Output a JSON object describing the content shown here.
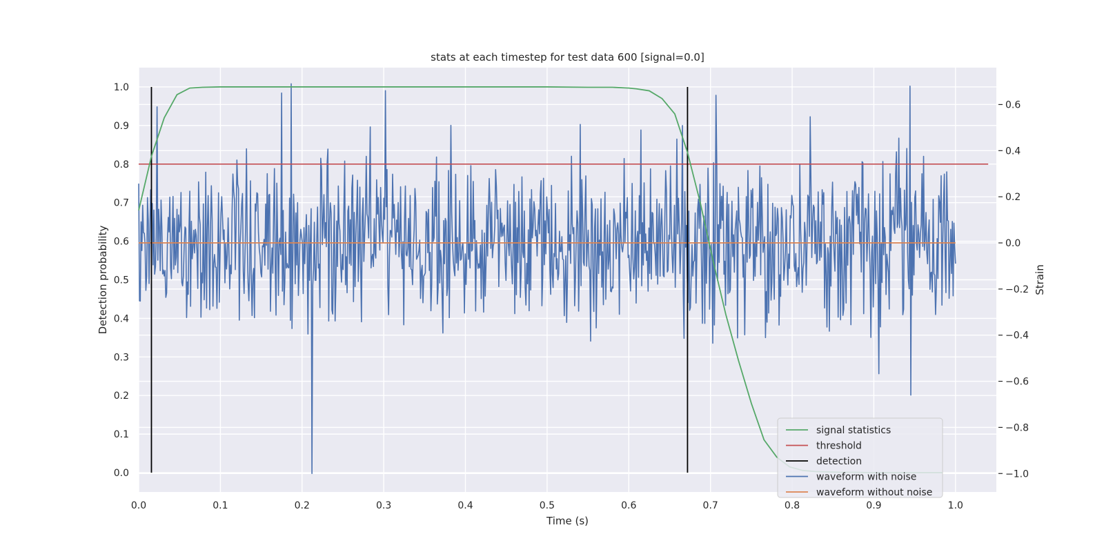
{
  "chart_data": {
    "type": "line",
    "title": "stats at each timestep for test data 600 [signal=0.0]",
    "xlabel": "Time (s)",
    "ylabel": "Detection probability",
    "y2label": "Strain",
    "xlim": [
      0.0,
      1.05
    ],
    "ylim": [
      -0.05,
      1.05
    ],
    "y2lim": [
      -1.08,
      0.76
    ],
    "grid": true,
    "background": "#eaeaf2",
    "x_ticks": [
      "0.0",
      "0.1",
      "0.2",
      "0.3",
      "0.4",
      "0.5",
      "0.6",
      "0.7",
      "0.8",
      "0.9",
      "1.0"
    ],
    "x_tick_values": [
      0.0,
      0.1,
      0.2,
      0.3,
      0.4,
      0.5,
      0.6,
      0.7,
      0.8,
      0.9,
      1.0
    ],
    "y_ticks": [
      "0.0",
      "0.1",
      "0.2",
      "0.3",
      "0.4",
      "0.5",
      "0.6",
      "0.7",
      "0.8",
      "0.9",
      "1.0"
    ],
    "y_tick_values": [
      0.0,
      0.1,
      0.2,
      0.3,
      0.4,
      0.5,
      0.6,
      0.7,
      0.8,
      0.9,
      1.0
    ],
    "y2_ticks": [
      "−1.0",
      "−0.8",
      "−0.6",
      "−0.4",
      "−0.2",
      "0.0",
      "0.2",
      "0.4",
      "0.6"
    ],
    "y2_tick_values": [
      -1.0,
      -0.8,
      -0.6,
      -0.4,
      -0.2,
      0.0,
      0.2,
      0.4,
      0.6
    ],
    "legend_position": "bottom-right",
    "series": [
      {
        "name": "signal statistics",
        "color": "#55a868",
        "axis": "left",
        "x": [
          0.0,
          0.0156,
          0.0313,
          0.0469,
          0.0625,
          0.0781,
          0.1,
          0.2,
          0.3,
          0.4,
          0.5,
          0.55,
          0.58,
          0.6,
          0.6094,
          0.625,
          0.6406,
          0.6563,
          0.6719,
          0.6875,
          0.7031,
          0.7188,
          0.7344,
          0.75,
          0.7656,
          0.7813,
          0.7969,
          0.8125,
          0.8281,
          0.8438,
          0.8594,
          0.875,
          0.9,
          0.95,
          0.9844
        ],
        "y": [
          0.68,
          0.82,
          0.92,
          0.98,
          0.997,
          0.999,
          1.0,
          1.0,
          1.0,
          1.0,
          1.0,
          0.999,
          0.999,
          0.997,
          0.995,
          0.99,
          0.97,
          0.93,
          0.83,
          0.7,
          0.55,
          0.41,
          0.29,
          0.18,
          0.085,
          0.04,
          0.015,
          0.006,
          0.003,
          0.002,
          0.001,
          0.001,
          0.0,
          0.0,
          0.0
        ]
      },
      {
        "name": "threshold",
        "color": "#c44e52",
        "axis": "left",
        "x": [
          0.0,
          1.04
        ],
        "y": [
          0.8,
          0.8
        ]
      },
      {
        "name": "detection",
        "color": "#000000",
        "axis": "left",
        "segments": [
          {
            "x": 0.0156,
            "y": [
              0.0,
              1.0
            ]
          },
          {
            "x": 0.6719,
            "y": [
              0.0,
              1.0
            ]
          }
        ]
      },
      {
        "name": "waveform with noise",
        "color": "#4c72b0",
        "axis": "right",
        "x_range": [
          0.0,
          1.0
        ],
        "n_points": 1024,
        "approx_range": [
          -1.0,
          0.69
        ],
        "notable_points": [
          {
            "x": 0.187,
            "y": 0.69
          },
          {
            "x": 0.212,
            "y": -1.0
          },
          {
            "x": 0.944,
            "y": 0.68
          },
          {
            "x": 0.945,
            "y": -0.66
          },
          {
            "x": 0.022,
            "y": 0.59
          },
          {
            "x": 0.175,
            "y": 0.65
          },
          {
            "x": 0.302,
            "y": 0.66
          }
        ],
        "noise_std": 0.17
      },
      {
        "name": "waveform without noise",
        "color": "#dd8452",
        "axis": "right",
        "x": [
          0.0,
          1.0
        ],
        "y": [
          0.0,
          0.0
        ]
      }
    ]
  }
}
